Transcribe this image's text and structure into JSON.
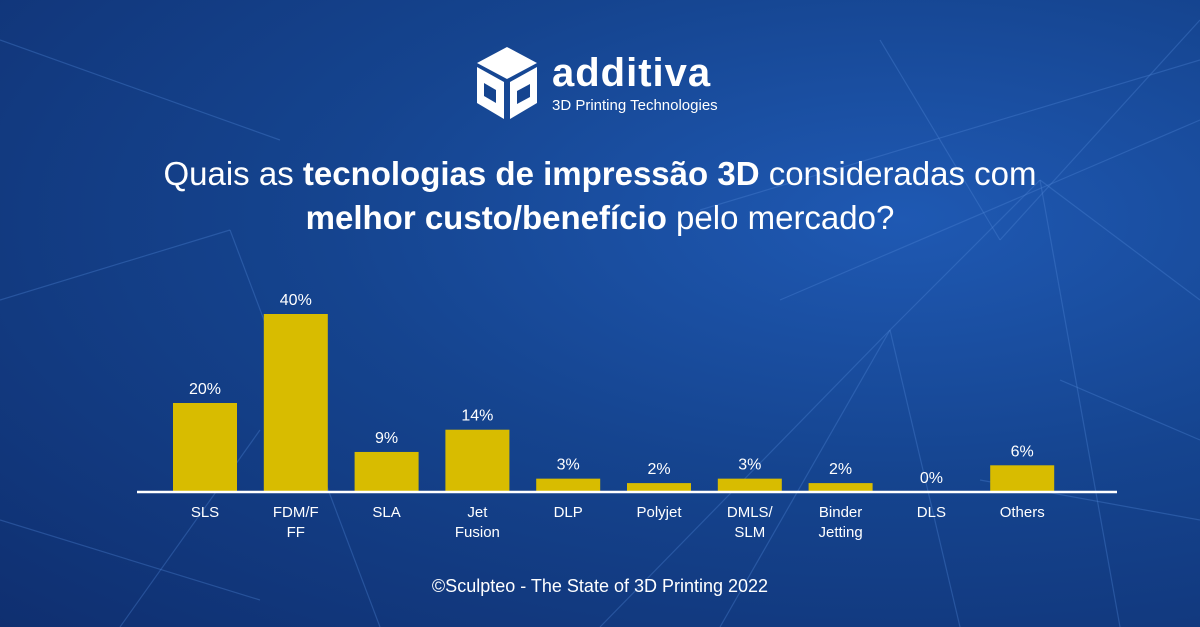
{
  "brand": {
    "name": "additiva",
    "tagline": "3D Printing Technologies"
  },
  "title": {
    "line1_start": "Quais as ",
    "line1_bold": "tecnologias de impressão 3D",
    "line1_end": " consideradas com",
    "line2_bold": "melhor custo/benefício",
    "line2_end": " pelo mercado?"
  },
  "source": "©Sculpteo - The State of 3D Printing 2022",
  "colors": {
    "bar": "#d8bc00",
    "text": "#ffffff",
    "background": "#15448f"
  },
  "chart_data": {
    "type": "bar",
    "title": "Quais as tecnologias de impressão 3D consideradas com melhor custo/benefício pelo mercado?",
    "categories": [
      [
        "SLS"
      ],
      [
        "FDM/F",
        "FF"
      ],
      [
        "SLA"
      ],
      [
        "Jet",
        "Fusion"
      ],
      [
        "DLP"
      ],
      [
        "Polyjet"
      ],
      [
        "DMLS/",
        "SLM"
      ],
      [
        "Binder",
        "Jetting"
      ],
      [
        "DLS"
      ],
      [
        "Others"
      ]
    ],
    "values": [
      20,
      40,
      9,
      14,
      3,
      2,
      3,
      2,
      0,
      6
    ],
    "value_labels": [
      "20%",
      "40%",
      "9%",
      "14%",
      "3%",
      "2%",
      "3%",
      "2%",
      "0%",
      "6%"
    ],
    "unit": "%",
    "xlabel": "",
    "ylabel": "",
    "ylim": [
      0,
      40
    ],
    "grid": false,
    "legend": "none"
  }
}
